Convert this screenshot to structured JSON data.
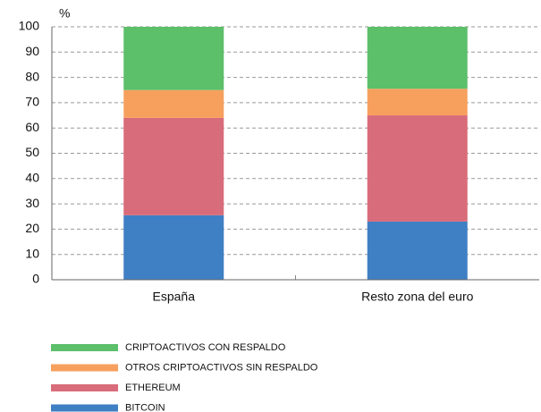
{
  "chart_data": {
    "type": "stacked_bar",
    "y_axis_label": "%",
    "categories": [
      "España",
      "Resto zona del euro"
    ],
    "series": [
      {
        "name": "BITCOIN",
        "color": "#3f7fc4",
        "values": [
          25.5,
          23
        ]
      },
      {
        "name": "ETHEREUM",
        "color": "#d96c7a",
        "values": [
          38.5,
          42
        ]
      },
      {
        "name": "OTROS CRIPTOACTIVOS SIN RESPALDO",
        "color": "#f7a05e",
        "values": [
          11,
          10.5
        ]
      },
      {
        "name": "CRIPTOACTIVOS CON RESPALDO",
        "color": "#5cbf6a",
        "values": [
          25,
          24.5
        ]
      }
    ],
    "ylim": [
      0,
      100
    ],
    "yticks": [
      0,
      10,
      20,
      30,
      40,
      50,
      60,
      70,
      80,
      90,
      100
    ],
    "grid": true
  }
}
